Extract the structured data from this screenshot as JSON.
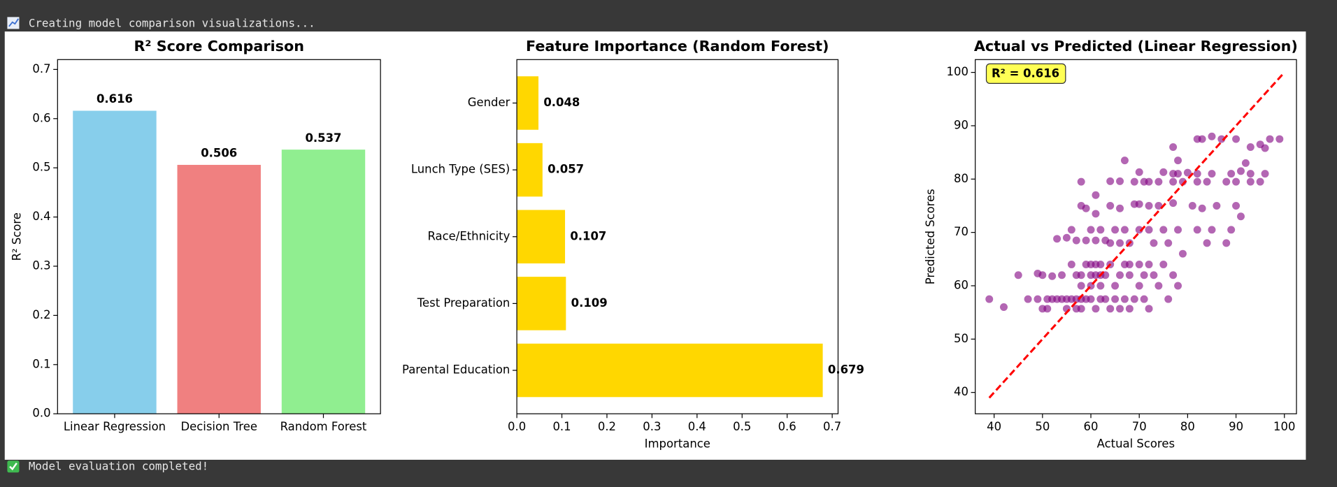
{
  "log": [
    "Creating model comparison visualizations...",
    "Model evaluation completed!"
  ],
  "chart_data": [
    {
      "type": "bar",
      "title": "R² Score Comparison",
      "ylabel": "R² Score",
      "categories": [
        "Linear Regression",
        "Decision Tree",
        "Random Forest"
      ],
      "values": [
        0.616,
        0.506,
        0.537
      ],
      "colors": [
        "#87ceeb",
        "#f08080",
        "#90ee90"
      ],
      "ylim": [
        0,
        0.72
      ],
      "yticks": [
        {
          "value": 0,
          "label": "0.0"
        },
        0.1,
        0.2,
        0.3,
        0.4,
        0.5,
        0.6,
        0.7
      ]
    },
    {
      "type": "barh",
      "title": "Feature Importance (Random Forest)",
      "xlabel": "Importance",
      "categories": [
        "Parental Education",
        "Test Preparation",
        "Race/Ethnicity",
        "Lunch Type (SES)",
        "Gender"
      ],
      "values": [
        0.679,
        0.109,
        0.107,
        0.057,
        0.048
      ],
      "color": "#ffd700",
      "xlim": [
        0,
        0.713
      ],
      "xticks": [
        {
          "value": 0,
          "label": "0.0"
        },
        0.1,
        0.2,
        0.3,
        0.4,
        0.5,
        0.6,
        0.7
      ]
    },
    {
      "type": "scatter",
      "title": "Actual vs Predicted (Linear Regression)",
      "xlabel": "Actual Scores",
      "ylabel": "Predicted Scores",
      "annotation": "R² = 0.616",
      "color": "#800080",
      "alpha": 0.6,
      "xlim": [
        36.1,
        102.5
      ],
      "ylim": [
        36.0,
        102.4
      ],
      "xticks": [
        40,
        50,
        60,
        70,
        80,
        90,
        100
      ],
      "yticks": [
        40,
        50,
        60,
        70,
        80,
        90,
        100
      ],
      "reference_line": {
        "x": [
          39,
          100
        ],
        "y": [
          39,
          100
        ],
        "color": "#ff0000"
      },
      "x": [
        39,
        47,
        49,
        51,
        52,
        53,
        54,
        55,
        56,
        57,
        58,
        59,
        60,
        62,
        63,
        65,
        67,
        69,
        71,
        76,
        42,
        50,
        51,
        55,
        57,
        58,
        61,
        64,
        66,
        68,
        72,
        45,
        49,
        50,
        52,
        54,
        57,
        58,
        60,
        61,
        62,
        63,
        66,
        68,
        71,
        73,
        77,
        56,
        59,
        60,
        61,
        62,
        64,
        67,
        68,
        70,
        72,
        75,
        58,
        60,
        62,
        65,
        70,
        74,
        78,
        53,
        55,
        57,
        59,
        61,
        63,
        64,
        66,
        68,
        73,
        76,
        79,
        88,
        84,
        56,
        60,
        62,
        65,
        67,
        70,
        72,
        75,
        78,
        82,
        85,
        89,
        58,
        59,
        61,
        64,
        66,
        69,
        70,
        72,
        74,
        77,
        81,
        83,
        86,
        90,
        91,
        58,
        66,
        69,
        71,
        72,
        74,
        77,
        79,
        82,
        84,
        88,
        90,
        93,
        95,
        70,
        75,
        77,
        78,
        80,
        82,
        85,
        89,
        91,
        93,
        96,
        67,
        78,
        77,
        82,
        83,
        85,
        87,
        90,
        93,
        95,
        97,
        99,
        96,
        92,
        61,
        64
      ],
      "y": [
        57.5,
        57.5,
        57.5,
        57.5,
        57.5,
        57.5,
        57.5,
        57.5,
        57.5,
        57.5,
        57.5,
        57.5,
        57.5,
        57.5,
        57.5,
        57.5,
        57.5,
        57.5,
        57.5,
        57.5,
        56,
        55.7,
        55.7,
        55.7,
        55.7,
        55.7,
        55.7,
        55.7,
        55.7,
        55.7,
        55.7,
        62,
        62.3,
        62,
        61.8,
        62,
        62,
        62,
        62,
        62,
        62,
        62,
        62,
        62,
        62,
        62,
        62,
        64,
        64,
        64,
        64,
        64,
        64,
        64,
        64,
        64,
        64,
        64,
        60,
        60,
        60,
        60,
        60,
        60,
        60,
        68.8,
        69,
        68.5,
        68.5,
        68.5,
        68.5,
        68,
        68,
        68,
        68,
        68,
        66,
        68,
        68,
        70.5,
        70.5,
        70.5,
        70.5,
        70.5,
        70.5,
        70.5,
        70.5,
        70.5,
        70.5,
        70.5,
        70.5,
        75,
        74.5,
        73.5,
        75,
        74.5,
        75.3,
        75.3,
        75,
        75,
        75.5,
        75,
        74.5,
        75,
        75,
        73,
        79.5,
        79.6,
        79.5,
        79.5,
        79.5,
        79.5,
        79.5,
        79.5,
        79.5,
        79.5,
        79.5,
        79.5,
        79.5,
        79.5,
        81.3,
        81.3,
        81,
        81,
        81.2,
        81,
        81,
        81,
        81.5,
        81,
        81,
        83.5,
        83.5,
        86,
        87.5,
        87.5,
        88,
        87.5,
        87.5,
        86,
        86.5,
        87.5,
        87.5,
        85.8,
        83,
        77,
        79.6
      ]
    }
  ]
}
